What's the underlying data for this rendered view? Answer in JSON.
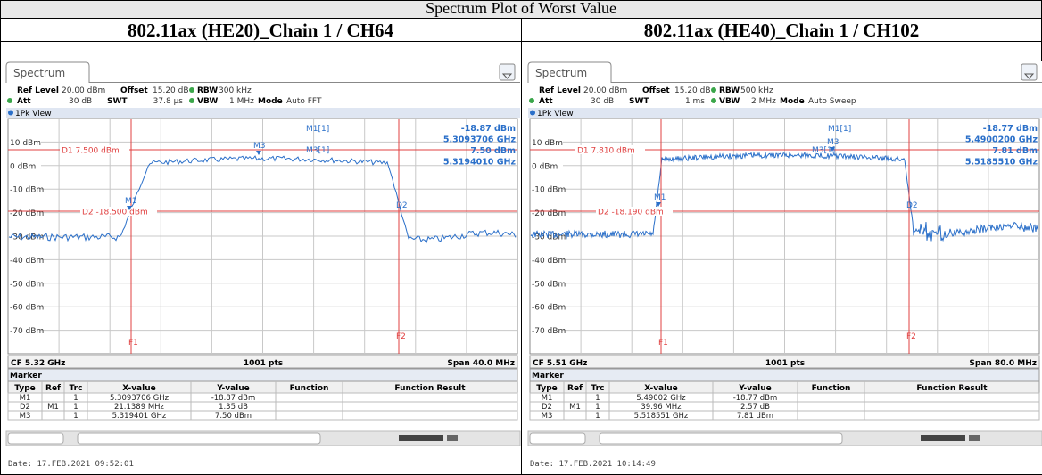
{
  "title": "Spectrum Plot of Worst Value",
  "panels": [
    {
      "heading": "802.11ax (HE20)_Chain 1 / CH64",
      "tab": "Spectrum",
      "settings": {
        "ref_level_label": "Ref Level",
        "ref_level": "20.00 dBm",
        "offset_label": "Offset",
        "offset": "15.20 dB",
        "rbw_label": "RBW",
        "rbw": "300 kHz",
        "att_label": "Att",
        "att": "30 dB",
        "swt_label": "SWT",
        "swt": "37.8 µs",
        "vbw_label": "VBW",
        "vbw": "1 MHz",
        "mode_label": "Mode",
        "mode": "Auto FFT"
      },
      "view": "1Pk View",
      "y_labels": [
        "10 dBm",
        "0 dBm",
        "-10 dBm",
        "-20 dBm",
        "-30 dBm",
        "-40 dBm",
        "-50 dBm",
        "-60 dBm",
        "-70 dBm"
      ],
      "display_lines": {
        "d1": "D1  7.500 dBm",
        "d2": "D2  -18.500 dBm",
        "d2_tag": "D2",
        "f1": "F1",
        "f2": "F2"
      },
      "marker_tags": {
        "m1": "M1",
        "m3": "M3",
        "m3_ref": "M3[1]"
      },
      "readout": {
        "title": "M1[1]",
        "lines": [
          "-18.87 dBm",
          "5.3093706 GHz",
          "7.50 dBm",
          "5.3194010 GHz"
        ]
      },
      "footer": {
        "center": "CF 5.32 GHz",
        "points": "1001 pts",
        "span": "Span 40.0 MHz"
      },
      "marker_table": {
        "title": "Marker",
        "columns": [
          "Type",
          "Ref",
          "Trc",
          "X-value",
          "Y-value",
          "Function",
          "Function Result"
        ],
        "rows": [
          {
            "type": "M1",
            "trc": "1",
            "x": "5.3093706 GHz",
            "y": "-18.87 dBm"
          },
          {
            "type": "D2",
            "ref": "M1",
            "trc": "1",
            "x": "21.1389 MHz",
            "y": "1.35 dB"
          },
          {
            "type": "M3",
            "trc": "1",
            "x": "5.319401 GHz",
            "y": "7.50 dBm"
          }
        ]
      },
      "date": "Date: 17.FEB.2021  09:52:01"
    },
    {
      "heading": "802.11ax (HE40)_Chain 1 / CH102",
      "tab": "Spectrum",
      "settings": {
        "ref_level_label": "Ref Level",
        "ref_level": "20.00 dBm",
        "offset_label": "Offset",
        "offset": "15.20 dB",
        "rbw_label": "RBW",
        "rbw": "500 kHz",
        "att_label": "Att",
        "att": "30 dB",
        "swt_label": "SWT",
        "swt": "1 ms",
        "vbw_label": "VBW",
        "vbw": "2 MHz",
        "mode_label": "Mode",
        "mode": "Auto Sweep"
      },
      "view": "1Pk View",
      "y_labels": [
        "10 dBm",
        "0 dBm",
        "-10 dBm",
        "-20 dBm",
        "-30 dBm",
        "-40 dBm",
        "-50 dBm",
        "-60 dBm",
        "-70 dBm"
      ],
      "display_lines": {
        "d1": "D1  7.810 dBm",
        "d2": "D2  -18.190 dBm",
        "d2_tag": "D2",
        "f1": "F1",
        "f2": "F2"
      },
      "marker_tags": {
        "m1": "M1",
        "m3": "M3",
        "m3_ref": "M3[1]"
      },
      "readout": {
        "title": "M1[1]",
        "lines": [
          "-18.77 dBm",
          "5.4900200 GHz",
          "7.81 dBm",
          "5.5185510 GHz"
        ]
      },
      "footer": {
        "center": "CF 5.51 GHz",
        "points": "1001 pts",
        "span": "Span 80.0 MHz"
      },
      "marker_table": {
        "title": "Marker",
        "columns": [
          "Type",
          "Ref",
          "Trc",
          "X-value",
          "Y-value",
          "Function",
          "Function Result"
        ],
        "rows": [
          {
            "type": "M1",
            "trc": "1",
            "x": "5.49002 GHz",
            "y": "-18.77 dBm"
          },
          {
            "type": "D2",
            "ref": "M1",
            "trc": "1",
            "x": "39.96 MHz",
            "y": "2.57 dB"
          },
          {
            "type": "M3",
            "trc": "1",
            "x": "5.518551 GHz",
            "y": "7.81 dBm"
          }
        ]
      },
      "date": "Date: 17.FEB.2021  10:14:49"
    }
  ]
}
